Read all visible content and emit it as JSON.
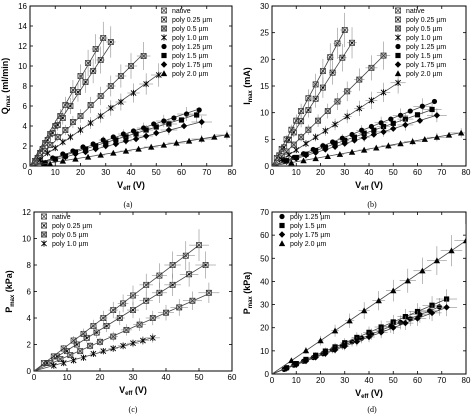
{
  "figure_labels": {
    "a": "(a)",
    "b": "(b)",
    "c": "(c)",
    "d": "(d)"
  },
  "chart_data": [
    {
      "id": "a",
      "type": "scatter",
      "ylabel_main": "Q",
      "ylabel_sub": "max",
      "ylabel_rest": " (ml/min)",
      "xlabel_main": "V",
      "xlabel_sub": "eff",
      "xlabel_rest": " (V)",
      "xlim": [
        0,
        80
      ],
      "ylim": [
        0,
        16
      ],
      "xticks": [
        0,
        10,
        20,
        30,
        40,
        50,
        60,
        70,
        80
      ],
      "yticks": [
        0,
        2,
        4,
        6,
        8,
        10,
        12,
        14,
        16
      ],
      "legend_position": "top-right",
      "series": [
        {
          "name": "native",
          "marker": "x-square",
          "slope": 0.44,
          "x": [
            2,
            4,
            6,
            8,
            10,
            12,
            14,
            17,
            20,
            23,
            26,
            29
          ],
          "y": [
            0.5,
            1.3,
            2.3,
            3.2,
            4.0,
            5.0,
            6.1,
            7.6,
            9.0,
            10.3,
            11.7,
            12.8
          ]
        },
        {
          "name": "poly 0.25 µm",
          "marker": "x-square-dot",
          "slope": 0.38,
          "x": [
            3,
            5,
            7,
            9,
            11,
            13,
            16,
            19,
            22,
            25,
            28,
            32
          ],
          "y": [
            0.8,
            1.7,
            2.6,
            3.3,
            4.1,
            4.8,
            6.0,
            7.4,
            8.4,
            9.5,
            10.6,
            12.4
          ]
        },
        {
          "name": "poly 0.5 µm",
          "marker": "x-square-hatch",
          "slope": 0.25,
          "x": [
            4,
            6,
            8,
            11,
            14,
            17,
            20,
            24,
            28,
            32,
            36,
            40,
            45
          ],
          "y": [
            0.8,
            1.5,
            2.1,
            2.9,
            3.6,
            4.4,
            5.0,
            6.1,
            7.0,
            8.0,
            9.0,
            10.0,
            11.0
          ]
        },
        {
          "name": "poly 1.0 µm",
          "marker": "asterisk",
          "slope": 0.18,
          "x": [
            4,
            7,
            10,
            13,
            16,
            20,
            24,
            28,
            32,
            36,
            41,
            46,
            51
          ],
          "y": [
            0.6,
            1.3,
            1.8,
            2.4,
            2.9,
            3.6,
            4.3,
            5.0,
            5.8,
            6.4,
            7.3,
            8.2,
            9.1
          ]
        },
        {
          "name": "poly 1.25 µm",
          "marker": "circle",
          "slope": 0.085,
          "x": [
            5,
            9,
            13,
            17,
            21,
            25,
            29,
            33,
            37,
            41,
            45,
            49,
            53,
            57,
            62,
            67
          ],
          "y": [
            0.3,
            0.8,
            1.2,
            1.5,
            1.9,
            2.2,
            2.6,
            2.9,
            3.2,
            3.5,
            3.8,
            4.2,
            4.5,
            4.8,
            5.2,
            5.6
          ]
        },
        {
          "name": "poly 1.5 µm",
          "marker": "square",
          "slope": 0.078,
          "x": [
            6,
            10,
            14,
            18,
            22,
            26,
            30,
            34,
            38,
            42,
            46,
            50,
            55,
            60,
            66
          ],
          "y": [
            0.3,
            0.7,
            1.0,
            1.4,
            1.7,
            2.0,
            2.3,
            2.6,
            2.9,
            3.2,
            3.6,
            3.9,
            4.2,
            4.6,
            5.1
          ]
        },
        {
          "name": "poly 1.75 µm",
          "marker": "diamond",
          "slope": 0.065,
          "x": [
            6,
            10,
            14,
            18,
            22,
            26,
            30,
            34,
            38,
            42,
            46,
            50,
            55,
            61,
            68
          ],
          "y": [
            0.3,
            0.6,
            0.9,
            1.2,
            1.4,
            1.7,
            2.0,
            2.2,
            2.5,
            2.7,
            3.0,
            3.3,
            3.6,
            4.0,
            4.4
          ]
        },
        {
          "name": "poly 2.0 µm",
          "marker": "triangle",
          "slope": 0.04,
          "x": [
            8,
            13,
            18,
            23,
            28,
            33,
            38,
            43,
            48,
            53,
            58,
            63,
            68,
            73,
            78
          ],
          "y": [
            0.2,
            0.5,
            0.7,
            0.9,
            1.1,
            1.3,
            1.5,
            1.7,
            1.9,
            2.1,
            2.3,
            2.5,
            2.7,
            2.9,
            3.1
          ]
        }
      ]
    },
    {
      "id": "b",
      "type": "scatter",
      "ylabel_main": "I",
      "ylabel_sub": "max",
      "ylabel_rest": " (mA)",
      "xlabel_main": "V",
      "xlabel_sub": "eff",
      "xlabel_rest": " (V)",
      "xlim": [
        0,
        80
      ],
      "ylim": [
        0,
        30
      ],
      "xticks": [
        0,
        10,
        20,
        30,
        40,
        50,
        60,
        70,
        80
      ],
      "yticks": [
        0,
        5,
        10,
        15,
        20,
        25,
        30
      ],
      "legend_position": "top-right",
      "series": [
        {
          "name": "native",
          "marker": "x-square",
          "slope": 0.85,
          "x": [
            2,
            4,
            6,
            8,
            10,
            12,
            15,
            18,
            21,
            24,
            27,
            30
          ],
          "y": [
            1.5,
            3.2,
            5.0,
            6.8,
            8.5,
            10.3,
            12.7,
            15.3,
            17.8,
            20.4,
            23.0,
            25.5
          ]
        },
        {
          "name": "poly 0.25 µm",
          "marker": "x-square-dot",
          "slope": 0.7,
          "x": [
            3,
            5,
            7,
            9,
            12,
            15,
            18,
            21,
            25,
            29,
            33
          ],
          "y": [
            2.0,
            3.5,
            4.9,
            6.3,
            8.4,
            10.5,
            12.6,
            14.7,
            17.5,
            20.3,
            23.1
          ]
        },
        {
          "name": "poly 0.5 µm",
          "marker": "x-square-hatch",
          "slope": 0.45,
          "x": [
            4,
            6,
            9,
            12,
            15,
            19,
            23,
            27,
            31,
            36,
            41,
            46
          ],
          "y": [
            1.8,
            2.7,
            4.0,
            5.4,
            6.8,
            8.5,
            10.3,
            12.1,
            14.0,
            16.2,
            18.4,
            20.7
          ]
        },
        {
          "name": "poly 1.0 µm",
          "marker": "asterisk",
          "slope": 0.3,
          "x": [
            4,
            7,
            10,
            14,
            18,
            22,
            26,
            31,
            36,
            41,
            46,
            52
          ],
          "y": [
            1.2,
            2.1,
            3.0,
            4.2,
            5.4,
            6.6,
            7.8,
            9.3,
            10.8,
            12.3,
            13.8,
            15.6
          ]
        },
        {
          "name": "poly 1.25 µm",
          "marker": "circle",
          "slope": 0.18,
          "x": [
            5,
            9,
            13,
            17,
            21,
            25,
            29,
            33,
            37,
            41,
            45,
            49,
            53,
            57,
            62,
            67
          ],
          "y": [
            0.9,
            1.6,
            2.3,
            3.1,
            3.8,
            4.5,
            5.2,
            5.9,
            6.7,
            7.4,
            8.1,
            8.8,
            9.5,
            10.3,
            11.2,
            12.1
          ]
        },
        {
          "name": "poly 1.5 µm",
          "marker": "square",
          "slope": 0.16,
          "x": [
            6,
            10,
            14,
            18,
            22,
            26,
            30,
            34,
            38,
            42,
            46,
            50,
            55,
            60,
            66
          ],
          "y": [
            1.0,
            1.6,
            2.2,
            2.9,
            3.5,
            4.2,
            4.8,
            5.4,
            6.1,
            6.7,
            7.4,
            8.0,
            8.8,
            9.6,
            10.6
          ]
        },
        {
          "name": "poly 1.75 µm",
          "marker": "diamond",
          "slope": 0.14,
          "x": [
            6,
            10,
            14,
            18,
            22,
            26,
            30,
            34,
            38,
            42,
            46,
            50,
            55,
            61,
            68
          ],
          "y": [
            0.8,
            1.4,
            2.0,
            2.5,
            3.1,
            3.6,
            4.2,
            4.8,
            5.3,
            5.9,
            6.4,
            7.0,
            7.7,
            8.5,
            9.5
          ]
        },
        {
          "name": "poly 1.75 µm",
          "marker": "diamond",
          "slope": 0.14,
          "x": [],
          "y": []
        },
        {
          "name": "poly 2.0 µm",
          "marker": "triangle",
          "slope": 0.08,
          "x": [
            8,
            13,
            18,
            23,
            28,
            33,
            38,
            43,
            48,
            53,
            58,
            63,
            68,
            73,
            78
          ],
          "y": [
            0.6,
            1.0,
            1.4,
            1.8,
            2.2,
            2.6,
            3.0,
            3.4,
            3.8,
            4.2,
            4.6,
            5.0,
            5.4,
            5.8,
            6.2
          ]
        }
      ]
    },
    {
      "id": "c",
      "type": "scatter",
      "ylabel_main": "P",
      "ylabel_sub": "max",
      "ylabel_rest": " (kPa)",
      "xlabel_main": "V",
      "xlabel_sub": "eff",
      "xlabel_rest": " (V)",
      "xlim": [
        0,
        60
      ],
      "ylim": [
        0,
        12
      ],
      "xticks": [
        0,
        10,
        20,
        30,
        40,
        50,
        60
      ],
      "yticks": [
        0,
        2,
        4,
        6,
        8,
        10,
        12
      ],
      "legend_position": "top-left",
      "series": [
        {
          "name": "native",
          "marker": "x-square",
          "slope": 0.19,
          "x": [
            3,
            6,
            9,
            12,
            15,
            18,
            21,
            24,
            27,
            30,
            34,
            38,
            42,
            46,
            50
          ],
          "y": [
            0.6,
            1.1,
            1.7,
            2.3,
            2.8,
            3.4,
            4.0,
            4.6,
            5.1,
            5.7,
            6.5,
            7.2,
            8.0,
            8.7,
            9.5
          ]
        },
        {
          "name": "poly 0.25 µm",
          "marker": "x-square-dot",
          "slope": 0.155,
          "x": [
            4,
            7,
            10,
            13,
            16,
            19,
            22,
            26,
            30,
            34,
            38,
            42,
            47,
            52
          ],
          "y": [
            0.6,
            1.1,
            1.5,
            2.0,
            2.5,
            2.9,
            3.4,
            4.0,
            4.6,
            5.3,
            5.9,
            6.5,
            7.3,
            8.0
          ]
        },
        {
          "name": "poly 0.5 µm",
          "marker": "x-square-hatch",
          "slope": 0.11,
          "x": [
            5,
            8,
            11,
            14,
            17,
            20,
            24,
            28,
            32,
            36,
            40,
            44,
            48,
            53
          ],
          "y": [
            0.6,
            0.9,
            1.2,
            1.5,
            1.9,
            2.2,
            2.6,
            3.1,
            3.5,
            4.0,
            4.4,
            4.8,
            5.3,
            5.9
          ]
        },
        {
          "name": "poly 1.0 µm",
          "marker": "asterisk",
          "slope": 0.07,
          "x": [
            6,
            9,
            12,
            15,
            18,
            21,
            24,
            27,
            30,
            33,
            36
          ],
          "y": [
            0.4,
            0.6,
            0.8,
            1.0,
            1.3,
            1.5,
            1.7,
            1.9,
            2.1,
            2.3,
            2.5
          ]
        }
      ]
    },
    {
      "id": "d",
      "type": "scatter",
      "ylabel_main": "P",
      "ylabel_sub": "max",
      "ylabel_rest": " (kPa)",
      "xlabel_main": "V",
      "xlabel_sub": "eff",
      "xlabel_rest": " (V)",
      "xlim": [
        0,
        80
      ],
      "ylim": [
        0,
        70
      ],
      "xticks": [
        0,
        10,
        20,
        30,
        40,
        50,
        60,
        70,
        80
      ],
      "yticks": [
        0,
        10,
        20,
        30,
        40,
        50,
        60,
        70
      ],
      "legend_position": "top-left",
      "series": [
        {
          "name": "poly 1.25 µm",
          "marker": "circle",
          "slope": 0.42,
          "x": [
            5,
            9,
            13,
            17,
            21,
            25,
            29,
            33,
            37,
            41,
            45,
            49,
            53,
            57,
            61,
            65,
            69
          ],
          "y": [
            2.0,
            3.8,
            5.5,
            7.1,
            8.8,
            10.5,
            12.2,
            13.9,
            15.5,
            17.2,
            18.9,
            20.6,
            22.3,
            23.9,
            25.6,
            27.3,
            29.0
          ]
        },
        {
          "name": "poly 1.5 µm",
          "marker": "square",
          "slope": 0.45,
          "x": [
            6,
            10,
            14,
            18,
            22,
            26,
            30,
            35,
            40,
            45,
            50,
            55,
            60,
            66,
            72
          ],
          "y": [
            2.7,
            4.5,
            6.3,
            8.1,
            9.9,
            11.7,
            13.5,
            15.8,
            18.0,
            20.3,
            22.5,
            24.8,
            27.0,
            29.7,
            32.4
          ]
        },
        {
          "name": "poly 1.75 µm",
          "marker": "diamond",
          "slope": 0.4,
          "x": [
            6,
            10,
            14,
            18,
            22,
            26,
            30,
            35,
            40,
            45,
            50,
            55,
            60,
            66,
            72
          ],
          "y": [
            2.4,
            4.0,
            5.6,
            7.2,
            8.8,
            10.4,
            12.0,
            14.0,
            16.0,
            18.0,
            20.0,
            22.0,
            24.0,
            26.4,
            28.8
          ]
        },
        {
          "name": "poly 2.0 µm",
          "marker": "triangle",
          "slope": 0.72,
          "x": [
            8,
            14,
            20,
            26,
            32,
            38,
            44,
            50,
            56,
            62,
            68,
            74,
            80
          ],
          "y": [
            5.8,
            10.1,
            14.4,
            18.7,
            23.0,
            27.4,
            31.7,
            36.0,
            40.3,
            44.6,
            49.0,
            53.3,
            57.6
          ]
        }
      ]
    }
  ]
}
